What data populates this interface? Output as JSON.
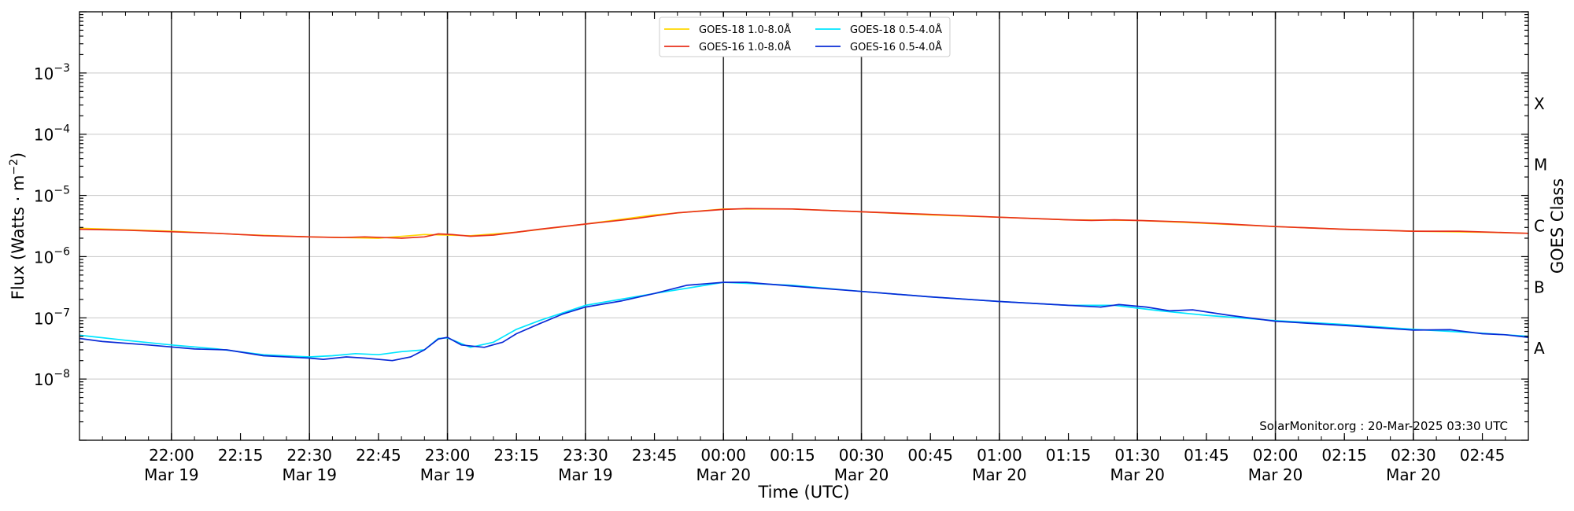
{
  "chart_data": {
    "type": "line",
    "title": "",
    "xlabel": "Time (UTC)",
    "ylabel_main": "Flux (Watts · m",
    "ylabel_sup": "−2",
    "ylabel_close": ")",
    "y2label": "GOES Class",
    "yscale": "log",
    "ylim": [
      1e-09,
      0.01
    ],
    "xlim": [
      "2025-03-19 21:40",
      "2025-03-20 02:55"
    ],
    "y_ticks": [
      {
        "value": 1e-08,
        "base": "10",
        "exp": "−8"
      },
      {
        "value": 1e-07,
        "base": "10",
        "exp": "−7"
      },
      {
        "value": 1e-06,
        "base": "10",
        "exp": "−6"
      },
      {
        "value": 1e-05,
        "base": "10",
        "exp": "−5"
      },
      {
        "value": 0.0001,
        "base": "10",
        "exp": "−4"
      },
      {
        "value": 0.001,
        "base": "10",
        "exp": "−3"
      }
    ],
    "x_ticks": [
      {
        "time": "2025-03-19 22:00",
        "label": "22:00",
        "sublabel": "Mar 19",
        "vline": true
      },
      {
        "time": "2025-03-19 22:15",
        "label": "22:15",
        "sublabel": "",
        "vline": false
      },
      {
        "time": "2025-03-19 22:30",
        "label": "22:30",
        "sublabel": "Mar 19",
        "vline": true
      },
      {
        "time": "2025-03-19 22:45",
        "label": "22:45",
        "sublabel": "",
        "vline": false
      },
      {
        "time": "2025-03-19 23:00",
        "label": "23:00",
        "sublabel": "Mar 19",
        "vline": true
      },
      {
        "time": "2025-03-19 23:15",
        "label": "23:15",
        "sublabel": "",
        "vline": false
      },
      {
        "time": "2025-03-19 23:30",
        "label": "23:30",
        "sublabel": "Mar 19",
        "vline": true
      },
      {
        "time": "2025-03-19 23:45",
        "label": "23:45",
        "sublabel": "",
        "vline": false
      },
      {
        "time": "2025-03-20 00:00",
        "label": "00:00",
        "sublabel": "Mar 20",
        "vline": true
      },
      {
        "time": "2025-03-20 00:15",
        "label": "00:15",
        "sublabel": "",
        "vline": false
      },
      {
        "time": "2025-03-20 00:30",
        "label": "00:30",
        "sublabel": "Mar 20",
        "vline": true
      },
      {
        "time": "2025-03-20 00:45",
        "label": "00:45",
        "sublabel": "",
        "vline": false
      },
      {
        "time": "2025-03-20 01:00",
        "label": "01:00",
        "sublabel": "Mar 20",
        "vline": true
      },
      {
        "time": "2025-03-20 01:15",
        "label": "01:15",
        "sublabel": "",
        "vline": false
      },
      {
        "time": "2025-03-20 01:30",
        "label": "01:30",
        "sublabel": "Mar 20",
        "vline": true
      },
      {
        "time": "2025-03-20 01:45",
        "label": "01:45",
        "sublabel": "",
        "vline": false
      },
      {
        "time": "2025-03-20 02:00",
        "label": "02:00",
        "sublabel": "Mar 20",
        "vline": true
      },
      {
        "time": "2025-03-20 02:15",
        "label": "02:15",
        "sublabel": "",
        "vline": false
      },
      {
        "time": "2025-03-20 02:30",
        "label": "02:30",
        "sublabel": "Mar 20",
        "vline": true
      },
      {
        "time": "2025-03-20 02:45",
        "label": "02:45",
        "sublabel": "",
        "vline": false
      }
    ],
    "goes_classes": [
      {
        "label": "A",
        "value": 3.16e-08
      },
      {
        "label": "B",
        "value": 3.16e-07
      },
      {
        "label": "C",
        "value": 3.16e-06
      },
      {
        "label": "M",
        "value": 3.16e-05
      },
      {
        "label": "X",
        "value": 0.000316
      }
    ],
    "grid": true,
    "legend_position": "top-center",
    "credit": "SolarMonitor.org : 20-Mar-2025 03:30 UTC",
    "series": [
      {
        "name": "GOES-18 1.0-8.0Å",
        "color": "#FFD700",
        "points": [
          [
            "2025-03-19 21:40",
            2.9e-06
          ],
          [
            "2025-03-19 22:00",
            2.6e-06
          ],
          [
            "2025-03-19 22:15",
            2.3e-06
          ],
          [
            "2025-03-19 22:30",
            2.1e-06
          ],
          [
            "2025-03-19 22:45",
            2e-06
          ],
          [
            "2025-03-19 22:55",
            2.3e-06
          ],
          [
            "2025-03-19 23:05",
            2.2e-06
          ],
          [
            "2025-03-19 23:15",
            2.5e-06
          ],
          [
            "2025-03-19 23:30",
            3.4e-06
          ],
          [
            "2025-03-19 23:45",
            4.8e-06
          ],
          [
            "2025-03-20 00:00",
            6e-06
          ],
          [
            "2025-03-20 00:15",
            6e-06
          ],
          [
            "2025-03-20 00:30",
            5.4e-06
          ],
          [
            "2025-03-20 00:45",
            4.8e-06
          ],
          [
            "2025-03-20 01:00",
            4.4e-06
          ],
          [
            "2025-03-20 01:15",
            4e-06
          ],
          [
            "2025-03-20 01:30",
            3.9e-06
          ],
          [
            "2025-03-20 01:45",
            3.5e-06
          ],
          [
            "2025-03-20 02:00",
            3.1e-06
          ],
          [
            "2025-03-20 02:15",
            2.8e-06
          ],
          [
            "2025-03-20 02:30",
            2.6e-06
          ],
          [
            "2025-03-20 02:45",
            2.5e-06
          ],
          [
            "2025-03-20 02:55",
            2.4e-06
          ]
        ]
      },
      {
        "name": "GOES-16 1.0-8.0Å",
        "color": "#E8301C",
        "points": [
          [
            "2025-03-19 21:40",
            2.8e-06
          ],
          [
            "2025-03-19 21:50",
            2.7e-06
          ],
          [
            "2025-03-19 22:00",
            2.55e-06
          ],
          [
            "2025-03-19 22:10",
            2.4e-06
          ],
          [
            "2025-03-19 22:20",
            2.2e-06
          ],
          [
            "2025-03-19 22:30",
            2.1e-06
          ],
          [
            "2025-03-19 22:37",
            2.05e-06
          ],
          [
            "2025-03-19 22:42",
            2.1e-06
          ],
          [
            "2025-03-19 22:50",
            2e-06
          ],
          [
            "2025-03-19 22:55",
            2.1e-06
          ],
          [
            "2025-03-19 22:58",
            2.35e-06
          ],
          [
            "2025-03-19 23:01",
            2.3e-06
          ],
          [
            "2025-03-19 23:05",
            2.15e-06
          ],
          [
            "2025-03-19 23:10",
            2.25e-06
          ],
          [
            "2025-03-19 23:15",
            2.5e-06
          ],
          [
            "2025-03-19 23:20",
            2.8e-06
          ],
          [
            "2025-03-19 23:30",
            3.4e-06
          ],
          [
            "2025-03-19 23:40",
            4.1e-06
          ],
          [
            "2025-03-19 23:50",
            5.2e-06
          ],
          [
            "2025-03-20 00:00",
            5.9e-06
          ],
          [
            "2025-03-20 00:05",
            6.1e-06
          ],
          [
            "2025-03-20 00:15",
            6e-06
          ],
          [
            "2025-03-20 00:30",
            5.4e-06
          ],
          [
            "2025-03-20 00:45",
            4.9e-06
          ],
          [
            "2025-03-20 01:00",
            4.4e-06
          ],
          [
            "2025-03-20 01:15",
            4e-06
          ],
          [
            "2025-03-20 01:20",
            3.9e-06
          ],
          [
            "2025-03-20 01:25",
            4e-06
          ],
          [
            "2025-03-20 01:30",
            3.9e-06
          ],
          [
            "2025-03-20 01:40",
            3.7e-06
          ],
          [
            "2025-03-20 01:50",
            3.4e-06
          ],
          [
            "2025-03-20 02:00",
            3.1e-06
          ],
          [
            "2025-03-20 02:15",
            2.8e-06
          ],
          [
            "2025-03-20 02:30",
            2.6e-06
          ],
          [
            "2025-03-20 02:40",
            2.6e-06
          ],
          [
            "2025-03-20 02:55",
            2.4e-06
          ]
        ]
      },
      {
        "name": "GOES-18 0.5-4.0Å",
        "color": "#00E5FF",
        "points": [
          [
            "2025-03-19 21:40",
            5.2e-08
          ],
          [
            "2025-03-19 21:50",
            4.3e-08
          ],
          [
            "2025-03-19 22:00",
            3.6e-08
          ],
          [
            "2025-03-19 22:10",
            3.1e-08
          ],
          [
            "2025-03-19 22:20",
            2.5e-08
          ],
          [
            "2025-03-19 22:30",
            2.3e-08
          ],
          [
            "2025-03-19 22:35",
            2.4e-08
          ],
          [
            "2025-03-19 22:40",
            2.6e-08
          ],
          [
            "2025-03-19 22:45",
            2.5e-08
          ],
          [
            "2025-03-19 22:50",
            2.8e-08
          ],
          [
            "2025-03-19 22:55",
            3e-08
          ],
          [
            "2025-03-19 22:58",
            4.6e-08
          ],
          [
            "2025-03-19 23:00",
            4.7e-08
          ],
          [
            "2025-03-19 23:05",
            3.3e-08
          ],
          [
            "2025-03-19 23:10",
            4e-08
          ],
          [
            "2025-03-19 23:15",
            6.5e-08
          ],
          [
            "2025-03-19 23:20",
            9e-08
          ],
          [
            "2025-03-19 23:30",
            1.6e-07
          ],
          [
            "2025-03-19 23:45",
            2.5e-07
          ],
          [
            "2025-03-20 00:00",
            3.8e-07
          ],
          [
            "2025-03-20 00:15",
            3.4e-07
          ],
          [
            "2025-03-20 00:30",
            2.7e-07
          ],
          [
            "2025-03-20 00:45",
            2.2e-07
          ],
          [
            "2025-03-20 01:00",
            1.85e-07
          ],
          [
            "2025-03-20 01:15",
            1.6e-07
          ],
          [
            "2025-03-20 01:25",
            1.6e-07
          ],
          [
            "2025-03-20 01:35",
            1.3e-07
          ],
          [
            "2025-03-20 01:45",
            1.1e-07
          ],
          [
            "2025-03-20 02:00",
            9e-08
          ],
          [
            "2025-03-20 02:15",
            7.8e-08
          ],
          [
            "2025-03-20 02:30",
            6.5e-08
          ],
          [
            "2025-03-20 02:45",
            5.6e-08
          ],
          [
            "2025-03-20 02:55",
            5e-08
          ]
        ]
      },
      {
        "name": "GOES-16 0.5-4.0Å",
        "color": "#0A2BD6",
        "points": [
          [
            "2025-03-19 21:40",
            4.6e-08
          ],
          [
            "2025-03-19 21:45",
            4.1e-08
          ],
          [
            "2025-03-19 21:55",
            3.6e-08
          ],
          [
            "2025-03-19 22:05",
            3.1e-08
          ],
          [
            "2025-03-19 22:12",
            3e-08
          ],
          [
            "2025-03-19 22:20",
            2.4e-08
          ],
          [
            "2025-03-19 22:30",
            2.2e-08
          ],
          [
            "2025-03-19 22:33",
            2.1e-08
          ],
          [
            "2025-03-19 22:38",
            2.3e-08
          ],
          [
            "2025-03-19 22:42",
            2.2e-08
          ],
          [
            "2025-03-19 22:48",
            2e-08
          ],
          [
            "2025-03-19 22:52",
            2.3e-08
          ],
          [
            "2025-03-19 22:55",
            3e-08
          ],
          [
            "2025-03-19 22:58",
            4.5e-08
          ],
          [
            "2025-03-19 23:00",
            4.8e-08
          ],
          [
            "2025-03-19 23:03",
            3.6e-08
          ],
          [
            "2025-03-19 23:08",
            3.3e-08
          ],
          [
            "2025-03-19 23:12",
            4e-08
          ],
          [
            "2025-03-19 23:15",
            5.5e-08
          ],
          [
            "2025-03-19 23:20",
            8e-08
          ],
          [
            "2025-03-19 23:25",
            1.15e-07
          ],
          [
            "2025-03-19 23:30",
            1.5e-07
          ],
          [
            "2025-03-19 23:38",
            1.9e-07
          ],
          [
            "2025-03-19 23:45",
            2.5e-07
          ],
          [
            "2025-03-19 23:52",
            3.4e-07
          ],
          [
            "2025-03-20 00:00",
            3.8e-07
          ],
          [
            "2025-03-20 00:05",
            3.8e-07
          ],
          [
            "2025-03-20 00:15",
            3.3e-07
          ],
          [
            "2025-03-20 00:30",
            2.7e-07
          ],
          [
            "2025-03-20 00:45",
            2.2e-07
          ],
          [
            "2025-03-20 01:00",
            1.85e-07
          ],
          [
            "2025-03-20 01:15",
            1.6e-07
          ],
          [
            "2025-03-20 01:22",
            1.5e-07
          ],
          [
            "2025-03-20 01:26",
            1.65e-07
          ],
          [
            "2025-03-20 01:32",
            1.5e-07
          ],
          [
            "2025-03-20 01:37",
            1.3e-07
          ],
          [
            "2025-03-20 01:42",
            1.35e-07
          ],
          [
            "2025-03-20 01:50",
            1.1e-07
          ],
          [
            "2025-03-20 02:00",
            8.8e-08
          ],
          [
            "2025-03-20 02:15",
            7.5e-08
          ],
          [
            "2025-03-20 02:30",
            6.3e-08
          ],
          [
            "2025-03-20 02:38",
            6.4e-08
          ],
          [
            "2025-03-20 02:45",
            5.5e-08
          ],
          [
            "2025-03-20 02:50",
            5.3e-08
          ],
          [
            "2025-03-20 02:55",
            4.8e-08
          ]
        ]
      }
    ]
  }
}
